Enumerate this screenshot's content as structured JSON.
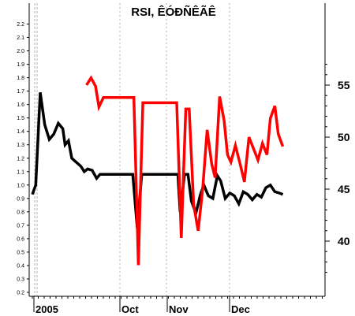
{
  "chart_data": {
    "type": "line",
    "title": "RSI, ÊÓÐÑÊÃÊ",
    "x_tick_labels": [
      "2005",
      "Oct",
      "Nov",
      "Dec"
    ],
    "left_axis": {
      "ylim": [
        0.2,
        2.25
      ],
      "ticks": [
        "0.2",
        "0.3",
        "0.4",
        "0.5",
        "0.6",
        "0.7",
        "0.8",
        "0.9",
        "1.0",
        "1.1",
        "1.2",
        "1.3",
        "1.4",
        "1.5",
        "1.6",
        "1.7",
        "1.8",
        "1.9",
        "2.0",
        "2.1",
        "2.2"
      ]
    },
    "right_axis": {
      "ylim": [
        36.5,
        57.5
      ],
      "ticks": [
        "40",
        "45",
        "50",
        "55"
      ]
    },
    "grid_x": true,
    "series": [
      {
        "axis": "left",
        "color": "#000000",
        "values": [
          {
            "x": 0,
            "y": 0.93
          },
          {
            "x": 3,
            "y": 1.0
          },
          {
            "x": 7,
            "y": 1.69
          },
          {
            "x": 11,
            "y": 1.45
          },
          {
            "x": 15,
            "y": 1.34
          },
          {
            "x": 19,
            "y": 1.38
          },
          {
            "x": 23,
            "y": 1.46
          },
          {
            "x": 27,
            "y": 1.42
          },
          {
            "x": 29,
            "y": 1.3
          },
          {
            "x": 32,
            "y": 1.33
          },
          {
            "x": 35,
            "y": 1.2
          },
          {
            "x": 39,
            "y": 1.17
          },
          {
            "x": 43,
            "y": 1.14
          },
          {
            "x": 46,
            "y": 1.1
          },
          {
            "x": 49,
            "y": 1.12
          },
          {
            "x": 53,
            "y": 1.11
          },
          {
            "x": 57,
            "y": 1.05
          },
          {
            "x": 60,
            "y": 1.08
          },
          {
            "x": 66,
            "y": 1.08
          },
          {
            "x": 72,
            "y": 1.08
          },
          {
            "x": 79,
            "y": 1.08
          },
          {
            "x": 85,
            "y": 1.08
          },
          {
            "x": 89,
            "y": 1.08
          },
          {
            "x": 93,
            "y": 0.68
          },
          {
            "x": 97,
            "y": 1.08
          },
          {
            "x": 103,
            "y": 1.08
          },
          {
            "x": 110,
            "y": 1.08
          },
          {
            "x": 117,
            "y": 1.08
          },
          {
            "x": 123,
            "y": 1.08
          },
          {
            "x": 129,
            "y": 1.08
          },
          {
            "x": 131,
            "y": 0.8
          },
          {
            "x": 135,
            "y": 1.08
          },
          {
            "x": 138,
            "y": 1.08
          },
          {
            "x": 141,
            "y": 0.88
          },
          {
            "x": 145,
            "y": 0.79
          },
          {
            "x": 149,
            "y": 0.93
          },
          {
            "x": 152,
            "y": 1.0
          },
          {
            "x": 156,
            "y": 0.92
          },
          {
            "x": 160,
            "y": 0.9
          },
          {
            "x": 164,
            "y": 1.07
          },
          {
            "x": 167,
            "y": 1.03
          },
          {
            "x": 171,
            "y": 0.9
          },
          {
            "x": 175,
            "y": 0.94
          },
          {
            "x": 179,
            "y": 0.92
          },
          {
            "x": 183,
            "y": 0.86
          },
          {
            "x": 187,
            "y": 0.95
          },
          {
            "x": 191,
            "y": 0.93
          },
          {
            "x": 195,
            "y": 0.89
          },
          {
            "x": 199,
            "y": 0.93
          },
          {
            "x": 203,
            "y": 0.91
          },
          {
            "x": 207,
            "y": 0.98
          },
          {
            "x": 211,
            "y": 1.0
          },
          {
            "x": 215,
            "y": 0.95
          },
          {
            "x": 219,
            "y": 0.94
          },
          {
            "x": 222,
            "y": 0.93
          }
        ]
      },
      {
        "axis": "right",
        "color": "#ff0000",
        "values": [
          {
            "x": 48,
            "y": 55.0
          },
          {
            "x": 52,
            "y": 55.7
          },
          {
            "x": 56,
            "y": 54.9
          },
          {
            "x": 59,
            "y": 52.9
          },
          {
            "x": 63,
            "y": 53.8
          },
          {
            "x": 68,
            "y": 53.8
          },
          {
            "x": 74,
            "y": 53.8
          },
          {
            "x": 80,
            "y": 53.8
          },
          {
            "x": 86,
            "y": 53.8
          },
          {
            "x": 90,
            "y": 53.8
          },
          {
            "x": 94,
            "y": 37.7
          },
          {
            "x": 98,
            "y": 53.3
          },
          {
            "x": 104,
            "y": 53.3
          },
          {
            "x": 110,
            "y": 53.3
          },
          {
            "x": 116,
            "y": 53.3
          },
          {
            "x": 122,
            "y": 53.3
          },
          {
            "x": 128,
            "y": 53.3
          },
          {
            "x": 132,
            "y": 40.3
          },
          {
            "x": 136,
            "y": 52.7
          },
          {
            "x": 139,
            "y": 52.7
          },
          {
            "x": 143,
            "y": 43.5
          },
          {
            "x": 147,
            "y": 41.0
          },
          {
            "x": 151,
            "y": 45.0
          },
          {
            "x": 155,
            "y": 50.7
          },
          {
            "x": 159,
            "y": 47.4
          },
          {
            "x": 162,
            "y": 46.1
          },
          {
            "x": 166,
            "y": 53.9
          },
          {
            "x": 170,
            "y": 51.6
          },
          {
            "x": 173,
            "y": 48.3
          },
          {
            "x": 176,
            "y": 47.6
          },
          {
            "x": 180,
            "y": 49.2
          },
          {
            "x": 184,
            "y": 47.5
          },
          {
            "x": 188,
            "y": 45.7
          },
          {
            "x": 192,
            "y": 50.0
          },
          {
            "x": 196,
            "y": 48.9
          },
          {
            "x": 200,
            "y": 47.8
          },
          {
            "x": 204,
            "y": 49.4
          },
          {
            "x": 208,
            "y": 48.3
          },
          {
            "x": 211,
            "y": 51.8
          },
          {
            "x": 215,
            "y": 53.0
          },
          {
            "x": 218,
            "y": 50.3
          },
          {
            "x": 222,
            "y": 49.1
          }
        ]
      }
    ]
  }
}
